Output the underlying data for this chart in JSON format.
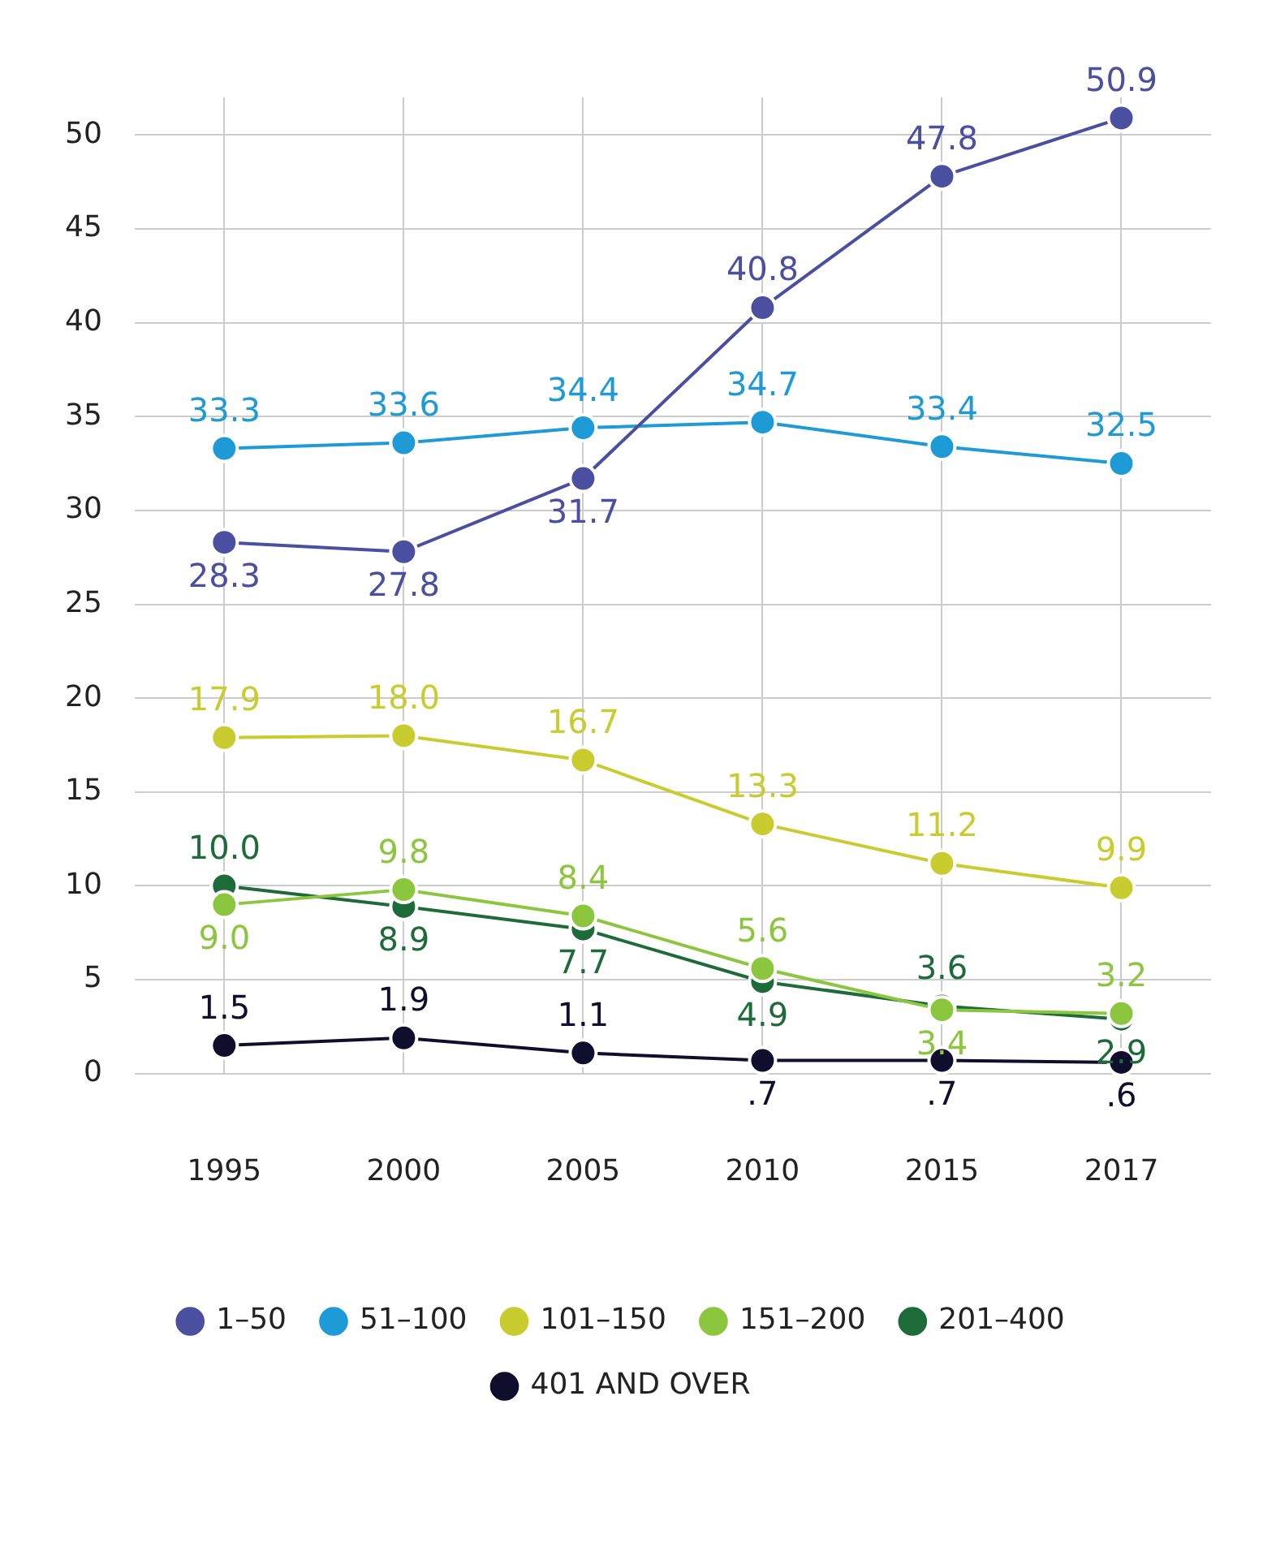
{
  "chart_data": {
    "type": "line",
    "categories": [
      "1995",
      "2000",
      "2005",
      "2010",
      "2015",
      "2017"
    ],
    "ylim": [
      0,
      52
    ],
    "yticks": [
      0,
      5,
      10,
      15,
      20,
      25,
      30,
      35,
      40,
      45,
      50
    ],
    "grid": true,
    "legend": "bottom",
    "marker": "circle",
    "data_labels": true,
    "series": [
      {
        "name": "1–50",
        "color": "#4a4fa0",
        "values": [
          28.3,
          27.8,
          31.7,
          40.8,
          47.8,
          50.9
        ]
      },
      {
        "name": "51–100",
        "color": "#1e9ad6",
        "values": [
          33.3,
          33.6,
          34.4,
          34.7,
          33.4,
          32.5
        ]
      },
      {
        "name": "101–150",
        "color": "#c9cc2e",
        "values": [
          17.9,
          18.0,
          16.7,
          13.3,
          11.2,
          9.9
        ],
        "value_labels": [
          "17.9",
          "18.0",
          "16.7",
          "13.3",
          "11.2",
          "9.9"
        ]
      },
      {
        "name": "151–200",
        "color": "#8cc63f",
        "values": [
          9.0,
          9.8,
          8.4,
          5.6,
          3.4,
          3.2
        ],
        "value_labels": [
          "9.0",
          "9.8",
          "8.4",
          "5.6",
          "3.4",
          "3.2"
        ]
      },
      {
        "name": "201–400",
        "color": "#1e6b3a",
        "values": [
          10.0,
          8.9,
          7.7,
          4.9,
          3.6,
          2.9
        ],
        "value_labels": [
          "10.0",
          "8.9",
          "7.7",
          "4.9",
          "3.6",
          "2.9"
        ]
      },
      {
        "name": "401 AND OVER",
        "color": "#0f0f2d",
        "values": [
          1.5,
          1.9,
          1.1,
          0.7,
          0.7,
          0.6
        ],
        "value_labels": [
          "1.5",
          "1.9",
          "1.1",
          ".7",
          ".7",
          ".6"
        ]
      }
    ]
  }
}
